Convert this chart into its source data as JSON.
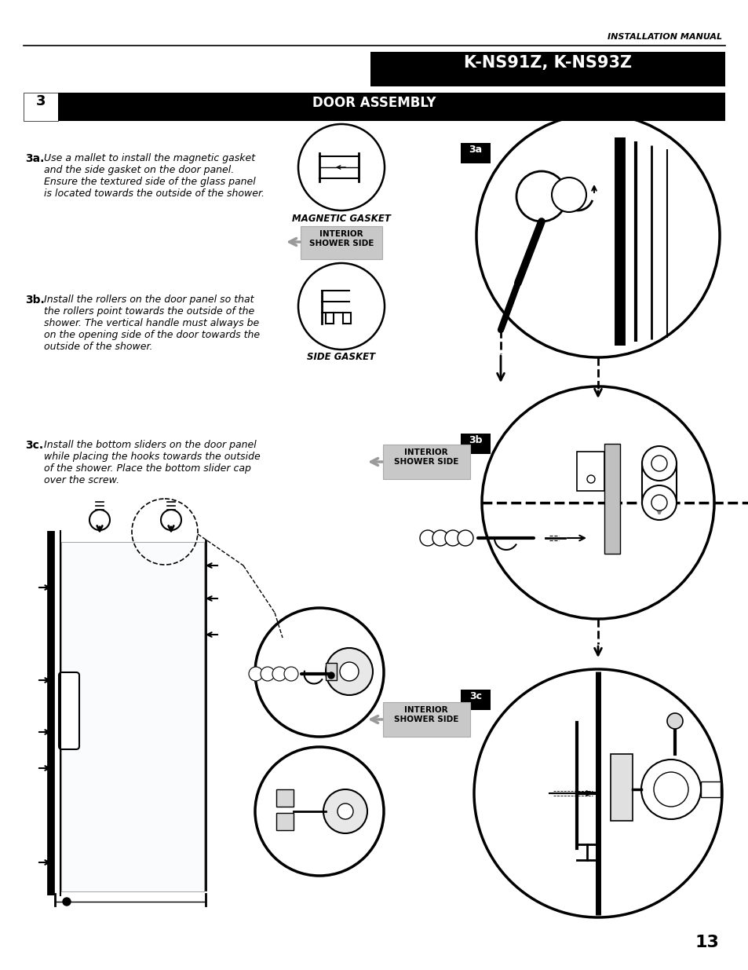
{
  "page_title": "INSTALLATION MANUAL",
  "model_title": "K-NS91Z, K-NS93Z",
  "section_number": "3",
  "section_title": "DOOR ASSEMBLY",
  "step_3a_label": "3a.",
  "step_3a_text": "Use a mallet to install the magnetic gasket\nand the side gasket on the door panel.\nEnsure the textured side of the glass panel\nis located towards the outside of the shower.",
  "step_3b_label": "3b.",
  "step_3b_text": "Install the rollers on the door panel so that\nthe rollers point towards the outside of the\nshower. The vertical handle must always be\non the opening side of the door towards the\noutside of the shower.",
  "step_3c_label": "3c.",
  "step_3c_text": "Install the bottom sliders on the door panel\nwhile placing the hooks towards the outside\nof the shower. Place the bottom slider cap\nover the screw.",
  "label_magnetic_gasket": "MAGNETIC GASKET",
  "label_side_gasket": "SIDE GASKET",
  "label_interior_shower_side": "INTERIOR\nSHOWER SIDE",
  "page_number": "13",
  "bg_color": "#ffffff",
  "text_color": "#000000",
  "header_bg": "#000000",
  "header_fg": "#ffffff",
  "section_bg": "#1a1a1a",
  "section_fg": "#ffffff",
  "interior_label_bg": "#c8c8c8",
  "interior_label_fg": "#000000",
  "line_color": "#000000",
  "gray_color": "#999999"
}
